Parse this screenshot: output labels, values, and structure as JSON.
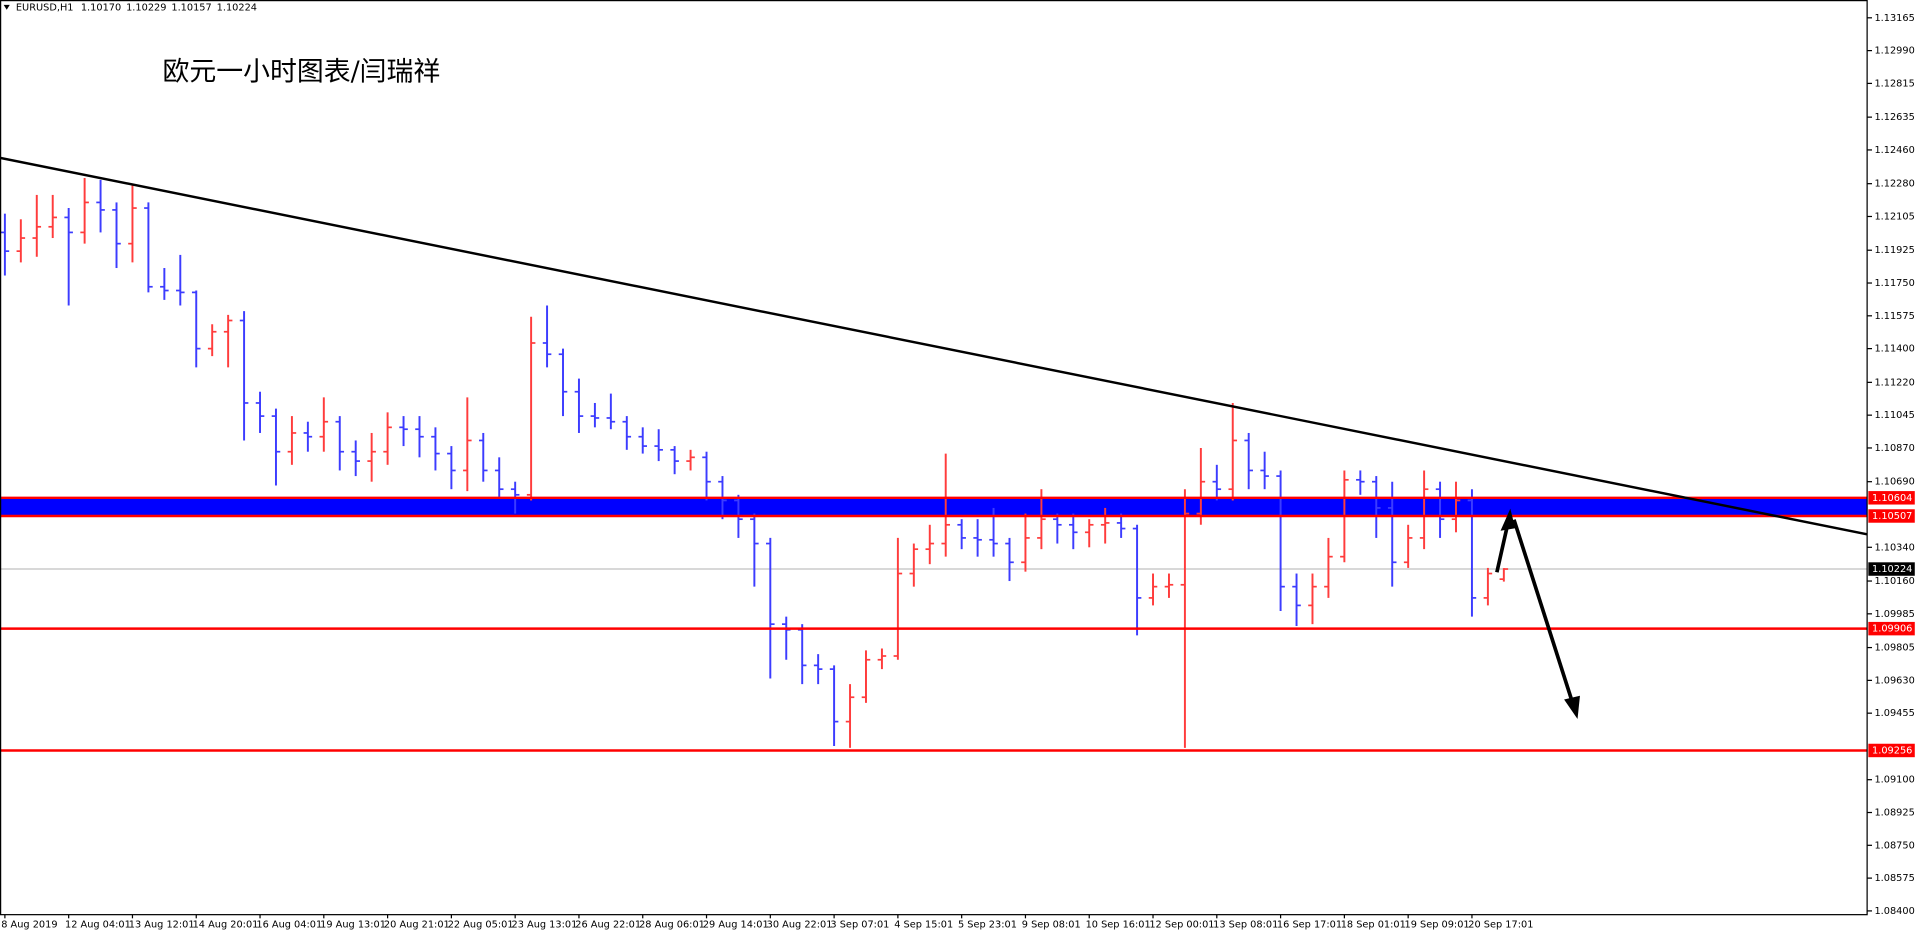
{
  "chart_data": {
    "type": "ohlc",
    "symbol": "EURUSD,H1",
    "last_bar_labels": [
      "1.10170",
      "1.10229",
      "1.10157",
      "1.10224"
    ],
    "title": "欧元一小时图表/闫瑞祥",
    "categories": [
      "8 Aug 2019",
      null,
      null,
      null,
      "12 Aug 04:01",
      null,
      null,
      null,
      "13 Aug 12:01",
      null,
      null,
      null,
      "14 Aug 20:01",
      null,
      null,
      null,
      "16 Aug 04:01",
      null,
      null,
      null,
      "19 Aug 13:01",
      null,
      null,
      null,
      "20 Aug 21:01",
      null,
      null,
      null,
      "22 Aug 05:01",
      null,
      null,
      null,
      "23 Aug 13:01",
      null,
      null,
      null,
      "26 Aug 22:01",
      null,
      null,
      null,
      "28 Aug 06:01",
      null,
      null,
      null,
      "29 Aug 14:01",
      null,
      null,
      null,
      "30 Aug 22:01",
      null,
      null,
      null,
      "3 Sep 07:01",
      null,
      null,
      null,
      "4 Sep 15:01",
      null,
      null,
      null,
      "5 Sep 23:01",
      null,
      null,
      null,
      "9 Sep 08:01",
      null,
      null,
      null,
      "10 Sep 16:01",
      null,
      null,
      null,
      "12 Sep 00:01",
      null,
      null,
      null,
      "13 Sep 08:01",
      null,
      null,
      null,
      "16 Sep 17:01",
      null,
      null,
      null,
      "18 Sep 01:01",
      null,
      null,
      null,
      "19 Sep 09:01",
      null,
      null,
      null,
      "20 Sep 17:01",
      null,
      null
    ],
    "ohlc": [
      [
        1.1202,
        1.1212,
        1.1179,
        1.1192
      ],
      [
        1.1192,
        1.1209,
        1.1186,
        1.1199
      ],
      [
        1.1199,
        1.1222,
        1.1189,
        1.1205
      ],
      [
        1.1205,
        1.1222,
        1.1199,
        1.121
      ],
      [
        1.121,
        1.1215,
        1.1163,
        1.1202
      ],
      [
        1.1202,
        1.1231,
        1.1196,
        1.1218
      ],
      [
        1.1218,
        1.123,
        1.1202,
        1.1214
      ],
      [
        1.1214,
        1.1218,
        1.1183,
        1.1196
      ],
      [
        1.1196,
        1.1228,
        1.1186,
        1.1215
      ],
      [
        1.1215,
        1.1218,
        1.117,
        1.1173
      ],
      [
        1.1173,
        1.1183,
        1.1166,
        1.1171
      ],
      [
        1.1171,
        1.119,
        1.1163,
        1.117
      ],
      [
        1.117,
        1.1171,
        1.113,
        1.114
      ],
      [
        1.114,
        1.1153,
        1.1136,
        1.1149
      ],
      [
        1.1149,
        1.1158,
        1.113,
        1.1155
      ],
      [
        1.1155,
        1.116,
        1.1091,
        1.1111
      ],
      [
        1.1111,
        1.1117,
        1.1095,
        1.1104
      ],
      [
        1.1104,
        1.1108,
        1.1067,
        1.1085
      ],
      [
        1.1085,
        1.1104,
        1.1078,
        1.1095
      ],
      [
        1.1095,
        1.1101,
        1.1085,
        1.1093
      ],
      [
        1.1093,
        1.1114,
        1.1085,
        1.1101
      ],
      [
        1.1101,
        1.1104,
        1.1075,
        1.1085
      ],
      [
        1.1085,
        1.1091,
        1.1072,
        1.108
      ],
      [
        1.108,
        1.1095,
        1.1069,
        1.1085
      ],
      [
        1.1085,
        1.1106,
        1.1078,
        1.1098
      ],
      [
        1.1098,
        1.1104,
        1.1088,
        1.1097
      ],
      [
        1.1097,
        1.1104,
        1.1082,
        1.1093
      ],
      [
        1.1093,
        1.1098,
        1.1075,
        1.1084
      ],
      [
        1.1084,
        1.1088,
        1.1065,
        1.1075
      ],
      [
        1.1075,
        1.1114,
        1.1064,
        1.1091
      ],
      [
        1.1091,
        1.1095,
        1.1069,
        1.1075
      ],
      [
        1.1075,
        1.1082,
        1.106,
        1.1065
      ],
      [
        1.1065,
        1.1069,
        1.1052,
        1.1062
      ],
      [
        1.1062,
        1.1157,
        1.1059,
        1.1143
      ],
      [
        1.1143,
        1.1163,
        1.113,
        1.1137
      ],
      [
        1.1137,
        1.114,
        1.1104,
        1.1117
      ],
      [
        1.1117,
        1.1124,
        1.1095,
        1.1104
      ],
      [
        1.1104,
        1.1111,
        1.1098,
        1.1103
      ],
      [
        1.1103,
        1.1116,
        1.1097,
        1.1101
      ],
      [
        1.1101,
        1.1104,
        1.1086,
        1.1093
      ],
      [
        1.1093,
        1.1098,
        1.1084,
        1.1088
      ],
      [
        1.1088,
        1.1097,
        1.108,
        1.1086
      ],
      [
        1.1086,
        1.1088,
        1.1073,
        1.108
      ],
      [
        1.108,
        1.1086,
        1.1075,
        1.1082
      ],
      [
        1.1082,
        1.1085,
        1.1059,
        1.1069
      ],
      [
        1.1069,
        1.1072,
        1.1049,
        1.1059
      ],
      [
        1.1059,
        1.1062,
        1.1039,
        1.1049
      ],
      [
        1.1049,
        1.1052,
        1.1013,
        1.1036
      ],
      [
        1.1036,
        1.1039,
        1.0964,
        1.0993
      ],
      [
        1.0993,
        1.0997,
        1.0974,
        1.099
      ],
      [
        1.099,
        1.0993,
        1.0961,
        1.0971
      ],
      [
        1.0971,
        1.0977,
        1.0961,
        1.0969
      ],
      [
        1.0969,
        1.0971,
        1.0928,
        1.0941
      ],
      [
        1.0941,
        1.0961,
        1.0927,
        1.0954
      ],
      [
        1.0954,
        1.0979,
        1.0951,
        1.0974
      ],
      [
        1.0974,
        1.098,
        1.0969,
        1.0976
      ],
      [
        1.0976,
        1.1039,
        1.0974,
        1.102
      ],
      [
        1.102,
        1.1036,
        1.1013,
        1.1033
      ],
      [
        1.1033,
        1.1046,
        1.1025,
        1.1036
      ],
      [
        1.1036,
        1.1084,
        1.1029,
        1.1046
      ],
      [
        1.1046,
        1.1049,
        1.1033,
        1.1039
      ],
      [
        1.1039,
        1.1049,
        1.1029,
        1.1038
      ],
      [
        1.1038,
        1.1055,
        1.1029,
        1.1036
      ],
      [
        1.1036,
        1.1039,
        1.1016,
        1.1026
      ],
      [
        1.1026,
        1.1052,
        1.1021,
        1.1039
      ],
      [
        1.1039,
        1.1065,
        1.1033,
        1.1049
      ],
      [
        1.1049,
        1.1052,
        1.1036,
        1.1046
      ],
      [
        1.1046,
        1.1052,
        1.1033,
        1.1042
      ],
      [
        1.1042,
        1.1049,
        1.1034,
        1.1046
      ],
      [
        1.1046,
        1.1055,
        1.1036,
        1.1047
      ],
      [
        1.1047,
        1.1052,
        1.1039,
        1.1044
      ],
      [
        1.1044,
        1.1046,
        1.0987,
        1.1007
      ],
      [
        1.1007,
        1.102,
        1.1003,
        1.1013
      ],
      [
        1.1013,
        1.102,
        1.1007,
        1.1014
      ],
      [
        1.1014,
        1.1065,
        1.0927,
        1.1052
      ],
      [
        1.1052,
        1.1087,
        1.1046,
        1.1069
      ],
      [
        1.1069,
        1.1078,
        1.1059,
        1.1065
      ],
      [
        1.1065,
        1.1111,
        1.1059,
        1.1091
      ],
      [
        1.1091,
        1.1095,
        1.1065,
        1.1075
      ],
      [
        1.1075,
        1.1085,
        1.1065,
        1.1072
      ],
      [
        1.1072,
        1.1075,
        1.1,
        1.1013
      ],
      [
        1.1013,
        1.102,
        1.0992,
        1.1003
      ],
      [
        1.1003,
        1.102,
        1.0993,
        1.1013
      ],
      [
        1.1013,
        1.1039,
        1.1007,
        1.1029
      ],
      [
        1.1029,
        1.1075,
        1.1026,
        1.107
      ],
      [
        1.107,
        1.1075,
        1.1062,
        1.1069
      ],
      [
        1.1069,
        1.1072,
        1.1039,
        1.1055
      ],
      [
        1.1055,
        1.1069,
        1.1013,
        1.1026
      ],
      [
        1.1026,
        1.1046,
        1.1023,
        1.1039
      ],
      [
        1.1039,
        1.1075,
        1.1033,
        1.1065
      ],
      [
        1.1065,
        1.1069,
        1.1039,
        1.1049
      ],
      [
        1.1049,
        1.1069,
        1.1042,
        1.1059
      ],
      [
        1.1059,
        1.1065,
        1.0997,
        1.1007
      ],
      [
        1.1007,
        1.1023,
        1.1003,
        1.102
      ],
      [
        1.1017,
        1.10229,
        1.10157,
        1.10224
      ]
    ],
    "up_color": "#ff3c3c",
    "down_color": "#3c3cff",
    "ylim": [
      1.0838,
      1.1326
    ],
    "yticks": [
      1.13165,
      {
        "value": 1.1299,
        "label": "1.12990"
      },
      1.12815,
      1.12635,
      {
        "value": 1.1246,
        "label": "1.12460"
      },
      {
        "value": 1.1228,
        "label": "1.12280"
      },
      1.12105,
      1.11925,
      {
        "value": 1.1175,
        "label": "1.11750"
      },
      1.11575,
      {
        "value": 1.114,
        "label": "1.11400"
      },
      {
        "value": 1.1122,
        "label": "1.11220"
      },
      1.11045,
      {
        "value": 1.1087,
        "label": "1.10870"
      },
      {
        "value": 1.1069,
        "label": "1.10690"
      },
      {
        "value": 1.1034,
        "label": "1.10340"
      },
      {
        "value": 1.1016,
        "label": "1.10160"
      },
      1.09985,
      1.09805,
      {
        "value": 1.0963,
        "label": "1.09630"
      },
      1.09455,
      {
        "value": 1.091,
        "label": "1.09100"
      },
      1.08925,
      {
        "value": 1.0875,
        "label": "1.08750"
      },
      1.08575,
      {
        "value": 1.084,
        "label": "1.08400"
      }
    ],
    "grid": false,
    "levels": [
      1.10604,
      1.10507,
      1.09906,
      1.09256
    ],
    "level_color": "#ff0000",
    "zone_color": "#0000ff",
    "current_price_color": "#c0c0c0",
    "trendline": {
      "start": 1.12418,
      "end": 1.10409,
      "color": "#000000"
    }
  }
}
